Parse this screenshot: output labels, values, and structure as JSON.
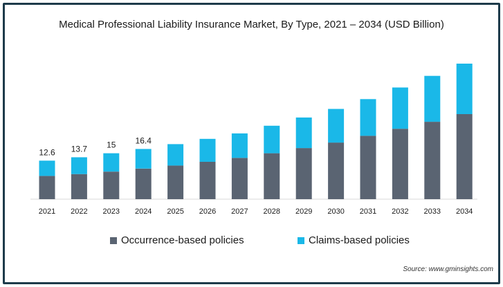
{
  "chart_data": {
    "type": "bar",
    "stacked": true,
    "title": "Medical Professional Liability Insurance Market, By Type, 2021 – 2034 (USD Billion)",
    "categories": [
      "2021",
      "2022",
      "2023",
      "2024",
      "2025",
      "2026",
      "2027",
      "2028",
      "2029",
      "2030",
      "2031",
      "2032",
      "2033",
      "2034"
    ],
    "series": [
      {
        "name": "Occurrence-based policies",
        "color": "#5a6472",
        "values": [
          7.6,
          8.2,
          9.0,
          10.0,
          11.0,
          12.2,
          13.5,
          15.0,
          16.7,
          18.5,
          20.7,
          23.0,
          25.3,
          27.8
        ]
      },
      {
        "name": "Claims-based policies",
        "color": "#1ab8e8",
        "values": [
          5.0,
          5.5,
          6.0,
          6.4,
          7.0,
          7.5,
          8.0,
          9.0,
          10.0,
          11.0,
          12.0,
          13.5,
          15.0,
          16.5
        ]
      }
    ],
    "data_labels": [
      "12.6",
      "13.7",
      "15",
      "16.4",
      "",
      "",
      "",
      "",
      "",
      "",
      "",
      "",
      "",
      ""
    ],
    "ylim": [
      0,
      46
    ],
    "grid": false,
    "legend": "bottom"
  },
  "source": "Source: www.gminsights.com"
}
